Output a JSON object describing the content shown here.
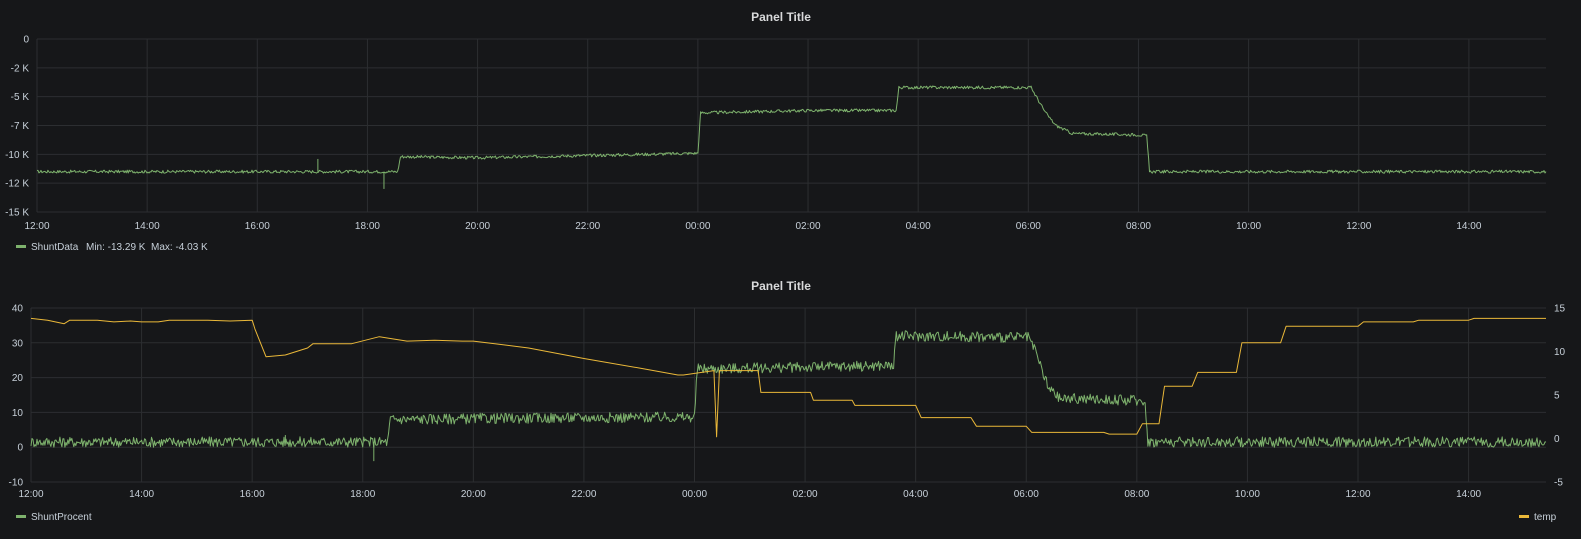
{
  "colors": {
    "background": "#161719",
    "shunt": "#7eb26d",
    "temp": "#eab839",
    "grid": "#2c2e31",
    "text": "#c7d0d9"
  },
  "chart_data": [
    {
      "type": "line",
      "title": "Panel Title",
      "xlabel": "",
      "ylabel": "",
      "x_ticks": [
        "12:00",
        "14:00",
        "16:00",
        "18:00",
        "20:00",
        "22:00",
        "00:00",
        "02:00",
        "04:00",
        "06:00",
        "08:00",
        "10:00",
        "12:00",
        "14:00"
      ],
      "y_ticks": [
        "0",
        "-2 K",
        "-5 K",
        "-7 K",
        "-10 K",
        "-12 K",
        "-15 K"
      ],
      "ylim": [
        -15000,
        0
      ],
      "x_range_hours": [
        0,
        27.4
      ],
      "grid": true,
      "legend_position": "bottom-left",
      "legend": {
        "series": "ShuntData",
        "stats": "Min: -13.29 K  Max: -4.03 K"
      },
      "series": [
        {
          "name": "ShuntData",
          "color": "#7eb26d",
          "noise": 130,
          "points": [
            [
              0,
              -11500
            ],
            [
              6.55,
              -11500
            ],
            [
              6.6,
              -10200
            ],
            [
              8,
              -10300
            ],
            [
              10,
              -10100
            ],
            [
              12,
              -9900
            ],
            [
              12.05,
              -6400
            ],
            [
              14,
              -6200
            ],
            [
              15.6,
              -6200
            ],
            [
              15.65,
              -4200
            ],
            [
              18.05,
              -4200
            ],
            [
              18.3,
              -6300
            ],
            [
              18.5,
              -7500
            ],
            [
              18.8,
              -8200
            ],
            [
              20,
              -8300
            ],
            [
              20.15,
              -8400
            ],
            [
              20.2,
              -11500
            ],
            [
              27.4,
              -11500
            ]
          ],
          "spikes": [
            [
              5.1,
              -10400
            ],
            [
              6.3,
              -13000
            ]
          ]
        }
      ]
    },
    {
      "type": "line",
      "title": "Panel Title",
      "xlabel": "",
      "ylabel": "",
      "x_ticks": [
        "12:00",
        "14:00",
        "16:00",
        "18:00",
        "20:00",
        "22:00",
        "00:00",
        "02:00",
        "04:00",
        "06:00",
        "08:00",
        "10:00",
        "12:00",
        "14:00"
      ],
      "y_ticks_left": [
        "40",
        "30",
        "20",
        "10",
        "0",
        "-10"
      ],
      "y_ticks_right": [
        "15",
        "10",
        "5",
        "0",
        "-5"
      ],
      "ylim_left": [
        -10,
        40
      ],
      "ylim_right": [
        -5,
        15
      ],
      "x_range_hours": [
        0,
        27.4
      ],
      "grid": true,
      "legend_position": "bottom",
      "series": [
        {
          "name": "ShuntProcent",
          "axis": "left",
          "color": "#7eb26d",
          "noise": 1.5,
          "points": [
            [
              0,
              1.5
            ],
            [
              6.45,
              1.5
            ],
            [
              6.5,
              8
            ],
            [
              10,
              8.5
            ],
            [
              12,
              8.6
            ],
            [
              12.05,
              22.5
            ],
            [
              14,
              23
            ],
            [
              15.6,
              23.5
            ],
            [
              15.65,
              32
            ],
            [
              18.05,
              31.5
            ],
            [
              18.2,
              26
            ],
            [
              18.4,
              17
            ],
            [
              18.6,
              14
            ],
            [
              20,
              13.5
            ],
            [
              20.15,
              13
            ],
            [
              20.2,
              1.5
            ],
            [
              27.4,
              1.5
            ]
          ],
          "spikes": [
            [
              6.2,
              -4
            ],
            [
              4.6,
              3.5
            ]
          ]
        },
        {
          "name": "temp",
          "axis": "right",
          "color": "#eab839",
          "noise": 0,
          "points": [
            [
              0,
              13.8
            ],
            [
              0.3,
              13.6
            ],
            [
              0.6,
              13.2
            ],
            [
              0.7,
              13.6
            ],
            [
              1.2,
              13.6
            ],
            [
              1.5,
              13.4
            ],
            [
              1.8,
              13.5
            ],
            [
              2,
              13.4
            ],
            [
              2.3,
              13.4
            ],
            [
              2.5,
              13.6
            ],
            [
              3,
              13.6
            ],
            [
              3.2,
              13.6
            ],
            [
              3.6,
              13.5
            ],
            [
              4,
              13.6
            ],
            [
              4.05,
              12.6
            ],
            [
              4.25,
              9.4
            ],
            [
              4.6,
              9.6
            ],
            [
              5,
              10.4
            ],
            [
              5.1,
              10.9
            ],
            [
              5.8,
              10.9
            ],
            [
              6.3,
              11.7
            ],
            [
              6.5,
              11.5
            ],
            [
              6.8,
              11.2
            ],
            [
              7.3,
              11.3
            ],
            [
              7.8,
              11.2
            ],
            [
              8,
              11.2
            ],
            [
              8.5,
              10.8
            ],
            [
              9,
              10.4
            ],
            [
              10,
              9.2
            ],
            [
              11,
              8.1
            ],
            [
              11.7,
              7.3
            ],
            [
              11.8,
              7.3
            ],
            [
              12.35,
              7.8
            ],
            [
              12.4,
              0.2
            ],
            [
              12.45,
              7.8
            ],
            [
              13.15,
              7.8
            ],
            [
              13.2,
              5.3
            ],
            [
              14.1,
              5.3
            ],
            [
              14.15,
              4.4
            ],
            [
              14.85,
              4.4
            ],
            [
              14.9,
              3.8
            ],
            [
              16,
              3.8
            ],
            [
              16.1,
              2.4
            ],
            [
              17,
              2.4
            ],
            [
              17.1,
              1.4
            ],
            [
              18,
              1.4
            ],
            [
              18.1,
              0.7
            ],
            [
              19.4,
              0.7
            ],
            [
              19.5,
              0.5
            ],
            [
              20,
              0.5
            ],
            [
              20.1,
              1.7
            ],
            [
              20.4,
              1.7
            ],
            [
              20.5,
              6.0
            ],
            [
              21,
              6.0
            ],
            [
              21.1,
              7.6
            ],
            [
              21.8,
              7.6
            ],
            [
              21.9,
              11.0
            ],
            [
              22.6,
              11.0
            ],
            [
              22.7,
              12.9
            ],
            [
              24,
              12.9
            ],
            [
              24.1,
              13.4
            ],
            [
              25,
              13.4
            ],
            [
              25.1,
              13.6
            ],
            [
              26,
              13.6
            ],
            [
              26.1,
              13.8
            ],
            [
              27.4,
              13.8
            ]
          ]
        }
      ]
    }
  ]
}
